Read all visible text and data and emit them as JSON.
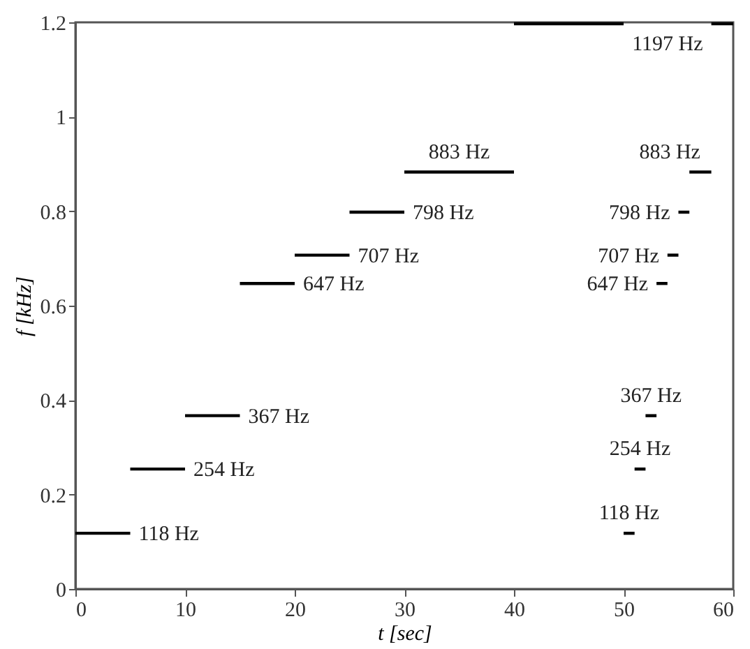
{
  "chart_data": {
    "type": "line",
    "xlabel": "t [sec]",
    "ylabel": "f [kHz]",
    "xlim": [
      0,
      60
    ],
    "xticks": [
      0,
      10,
      20,
      30,
      40,
      50,
      60
    ],
    "ylim": [
      0,
      1.2
    ],
    "yticks": [
      0,
      0.2,
      0.4,
      0.6,
      0.8,
      1,
      1.2
    ],
    "grid": false,
    "marker": "none",
    "line_style": "solid",
    "series": [
      {
        "color": "#000000",
        "x": [
          0,
          5
        ],
        "values": [
          0.118,
          0.118
        ]
      },
      {
        "color": "#000000",
        "x": [
          5,
          10
        ],
        "values": [
          0.254,
          0.254
        ]
      },
      {
        "color": "#000000",
        "x": [
          10,
          15
        ],
        "values": [
          0.367,
          0.367
        ]
      },
      {
        "color": "#000000",
        "x": [
          15,
          20
        ],
        "values": [
          0.647,
          0.647
        ]
      },
      {
        "color": "#000000",
        "x": [
          20,
          25
        ],
        "values": [
          0.707,
          0.707
        ]
      },
      {
        "color": "#000000",
        "x": [
          25,
          30
        ],
        "values": [
          0.798,
          0.798
        ]
      },
      {
        "color": "#000000",
        "x": [
          30,
          40
        ],
        "values": [
          0.883,
          0.883
        ]
      },
      {
        "color": "#000000",
        "x": [
          40,
          50
        ],
        "values": [
          1.197,
          1.197
        ]
      },
      {
        "color": "#000000",
        "x": [
          50,
          51
        ],
        "values": [
          0.118,
          0.118
        ]
      },
      {
        "color": "#000000",
        "x": [
          51,
          52
        ],
        "values": [
          0.254,
          0.254
        ]
      },
      {
        "color": "#000000",
        "x": [
          52,
          53
        ],
        "values": [
          0.367,
          0.367
        ]
      },
      {
        "color": "#000000",
        "x": [
          53,
          54
        ],
        "values": [
          0.647,
          0.647
        ]
      },
      {
        "color": "#000000",
        "x": [
          54,
          55
        ],
        "values": [
          0.707,
          0.707
        ]
      },
      {
        "color": "#000000",
        "x": [
          55,
          56
        ],
        "values": [
          0.798,
          0.798
        ]
      },
      {
        "color": "#000000",
        "x": [
          56,
          58
        ],
        "values": [
          0.883,
          0.883
        ]
      },
      {
        "color": "#000000",
        "x": [
          58,
          60
        ],
        "values": [
          1.197,
          1.197
        ]
      }
    ],
    "annotations": [
      {
        "text": "118 Hz",
        "x": 5,
        "y": 0.118
      },
      {
        "text": "254 Hz",
        "x": 10,
        "y": 0.254
      },
      {
        "text": "367 Hz",
        "x": 15,
        "y": 0.367
      },
      {
        "text": "647 Hz",
        "x": 20,
        "y": 0.647
      },
      {
        "text": "707 Hz",
        "x": 25,
        "y": 0.707
      },
      {
        "text": "798 Hz",
        "x": 30,
        "y": 0.798
      },
      {
        "text": "883 Hz",
        "x": 35,
        "y": 0.883
      },
      {
        "text": "1197 Hz",
        "x": 58,
        "y": 1.197
      },
      {
        "text": "883 Hz",
        "x": 57,
        "y": 0.883
      },
      {
        "text": "798 Hz",
        "x": 55,
        "y": 0.798
      },
      {
        "text": "707 Hz",
        "x": 54,
        "y": 0.707
      },
      {
        "text": "647 Hz",
        "x": 53,
        "y": 0.647
      },
      {
        "text": "367 Hz",
        "x": 52.5,
        "y": 0.367
      },
      {
        "text": "254 Hz",
        "x": 51.5,
        "y": 0.254
      },
      {
        "text": "118 Hz",
        "x": 50.5,
        "y": 0.118
      }
    ]
  }
}
